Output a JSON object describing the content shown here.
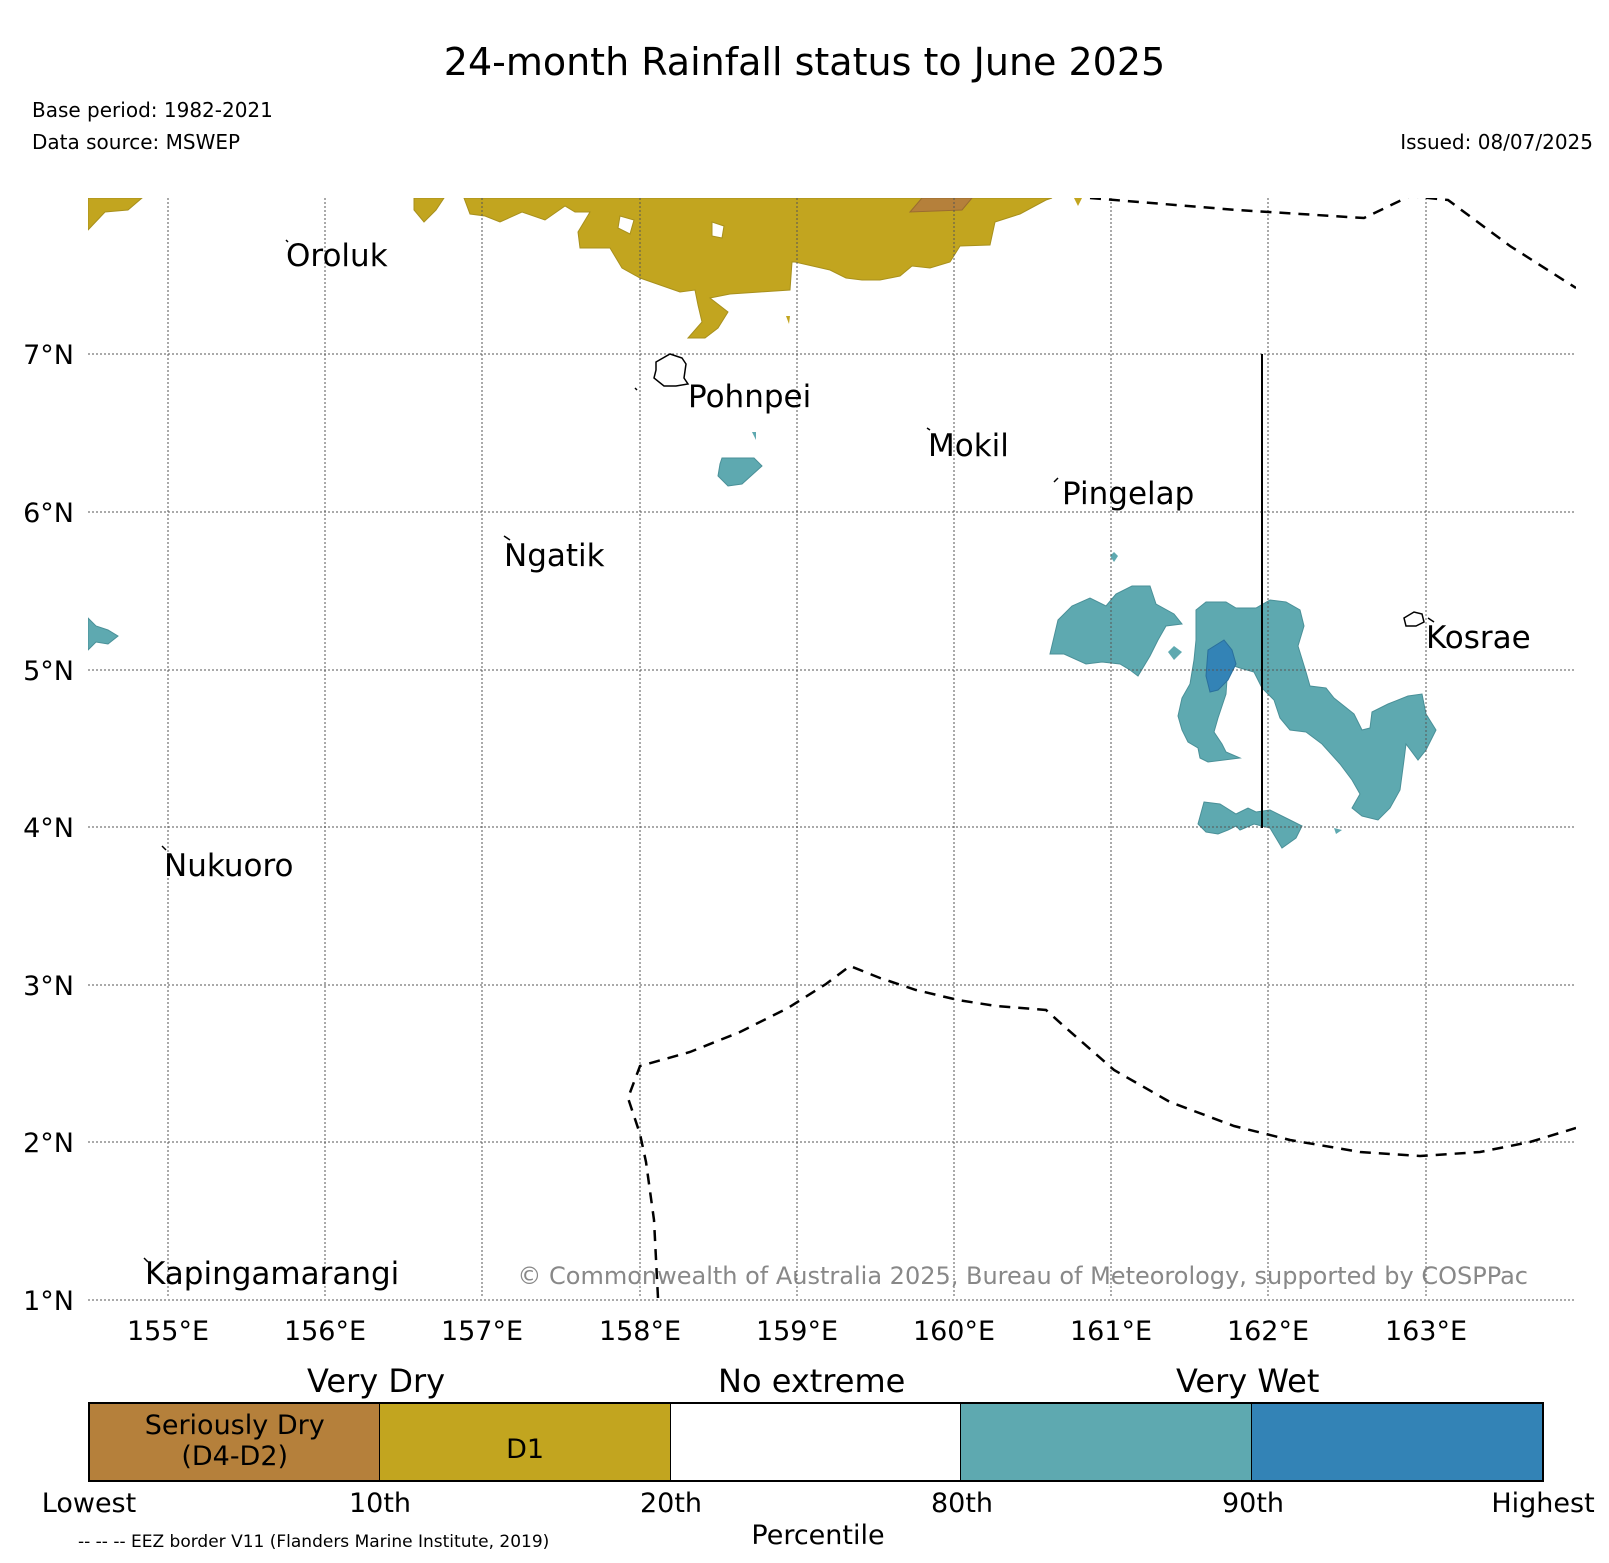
{
  "header": {
    "title": "24-month Rainfall status to June 2025",
    "base_period": "Base period: 1982-2021",
    "data_source": "Data source: MSWEP",
    "issued": "Issued: 08/07/2025"
  },
  "map": {
    "lat_labels": [
      "7°N",
      "6°N",
      "5°N",
      "4°N",
      "3°N",
      "2°N",
      "1°N"
    ],
    "lon_labels": [
      "155°E",
      "156°E",
      "157°E",
      "158°E",
      "159°E",
      "160°E",
      "161°E",
      "162°E",
      "163°E"
    ],
    "places": [
      "Oroluk",
      "Pohnpei",
      "Mokil",
      "Pingelap",
      "Ngatik",
      "Kosrae",
      "Nukuoro",
      "Kapingamarangi"
    ],
    "copyright": "© Commonwealth of Australia 2025, Bureau of Meteorology, supported by COSPPac"
  },
  "legend": {
    "categories": [
      "Very Dry",
      "No extreme",
      "Very Wet"
    ],
    "segments": [
      {
        "label": "Seriously Dry\n(D4-D2)",
        "color": "#b5803b"
      },
      {
        "label": "D1",
        "color": "#c2a51f"
      },
      {
        "label": "",
        "color": "#ffffff"
      },
      {
        "label": "",
        "color": "#5ea9b0"
      },
      {
        "label": "",
        "color": "#3383b6"
      }
    ],
    "ticks": [
      "Lowest",
      "10th",
      "20th",
      "80th",
      "90th",
      "Highest"
    ],
    "axis_label": "Percentile",
    "eez_note": "-- -- -- EEZ border V11 (Flanders Marine Institute, 2019)"
  },
  "colors": {
    "seriously_dry": "#b5803b",
    "d1": "#c2a51f",
    "very_wet_80_90": "#5ea9b0",
    "very_wet_90_plus": "#3383b6"
  }
}
